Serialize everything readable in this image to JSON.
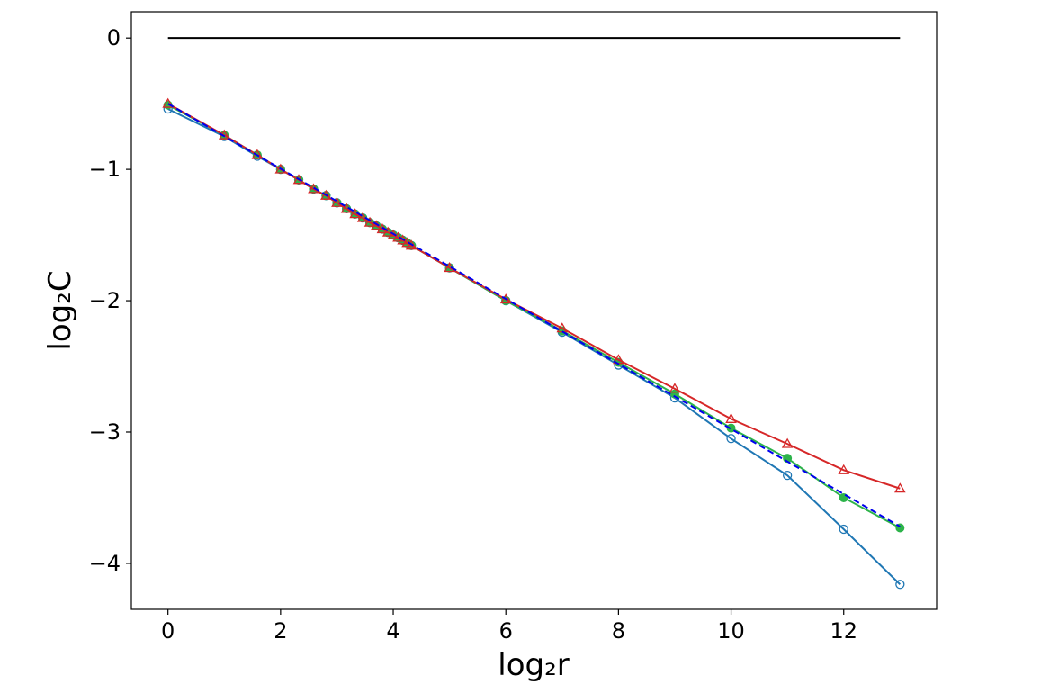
{
  "chart_data": {
    "type": "line",
    "xlabel": "log₂r",
    "ylabel": "log₂C",
    "xlim": [
      -0.65,
      13.65
    ],
    "ylim": [
      -4.35,
      0.2
    ],
    "xticks": [
      0,
      2,
      4,
      6,
      8,
      10,
      12
    ],
    "yticks": [
      0,
      -1,
      -2,
      -3,
      -4
    ],
    "xtick_labels": [
      "0",
      "2",
      "4",
      "6",
      "8",
      "10",
      "12"
    ],
    "ytick_labels": [
      "0",
      "−1",
      "−2",
      "−3",
      "−4"
    ],
    "grid": false,
    "legend": false,
    "reference_line": {
      "x": [
        0,
        13
      ],
      "y": [
        0,
        0
      ],
      "color": "#000000"
    },
    "series": [
      {
        "color": "#1f77b4",
        "marker": "circle-open",
        "dash": false,
        "x": [
          0,
          1,
          1.585,
          2,
          2.322,
          2.585,
          2.807,
          3,
          3.17,
          3.322,
          3.459,
          3.585,
          3.7,
          3.807,
          3.907,
          4,
          4.087,
          4.17,
          4.248,
          4.322,
          5,
          6,
          7,
          8,
          9,
          10,
          11,
          12,
          13
        ],
        "y": [
          -0.54,
          -0.75,
          -0.9,
          -1.0,
          -1.08,
          -1.15,
          -1.2,
          -1.255,
          -1.3,
          -1.34,
          -1.37,
          -1.405,
          -1.43,
          -1.455,
          -1.48,
          -1.5,
          -1.52,
          -1.54,
          -1.56,
          -1.58,
          -1.75,
          -2.0,
          -2.24,
          -2.49,
          -2.74,
          -3.05,
          -3.33,
          -3.74,
          -4.16
        ]
      },
      {
        "color": "#2db34a",
        "marker": "circle-filled",
        "dash": false,
        "x": [
          0,
          1,
          1.585,
          2,
          2.322,
          2.585,
          2.807,
          3,
          3.17,
          3.322,
          3.459,
          3.585,
          3.7,
          3.807,
          3.907,
          4,
          4.087,
          4.17,
          4.248,
          4.322,
          5,
          6,
          7,
          8,
          9,
          10,
          11,
          12,
          13
        ],
        "y": [
          -0.51,
          -0.74,
          -0.89,
          -1.0,
          -1.08,
          -1.15,
          -1.2,
          -1.255,
          -1.3,
          -1.34,
          -1.37,
          -1.405,
          -1.43,
          -1.455,
          -1.48,
          -1.5,
          -1.52,
          -1.54,
          -1.56,
          -1.58,
          -1.75,
          -2.0,
          -2.23,
          -2.47,
          -2.71,
          -2.97,
          -3.2,
          -3.5,
          -3.73
        ]
      },
      {
        "color": "#d62728",
        "marker": "triangle-open",
        "dash": false,
        "x": [
          0,
          1,
          1.585,
          2,
          2.322,
          2.585,
          2.807,
          3,
          3.17,
          3.322,
          3.459,
          3.585,
          3.7,
          3.807,
          3.907,
          4,
          4.087,
          4.17,
          4.248,
          4.322,
          5,
          6,
          7,
          8,
          9,
          10,
          11,
          12,
          13
        ],
        "y": [
          -0.5,
          -0.74,
          -0.89,
          -1.0,
          -1.08,
          -1.15,
          -1.2,
          -1.255,
          -1.3,
          -1.34,
          -1.37,
          -1.405,
          -1.43,
          -1.455,
          -1.48,
          -1.5,
          -1.52,
          -1.54,
          -1.56,
          -1.58,
          -1.75,
          -1.99,
          -2.21,
          -2.45,
          -2.67,
          -2.9,
          -3.09,
          -3.29,
          -3.43
        ]
      },
      {
        "color": "#0000ee",
        "marker": "none",
        "dash": true,
        "x": [
          0,
          13
        ],
        "y": [
          -0.5,
          -3.72
        ]
      }
    ]
  }
}
